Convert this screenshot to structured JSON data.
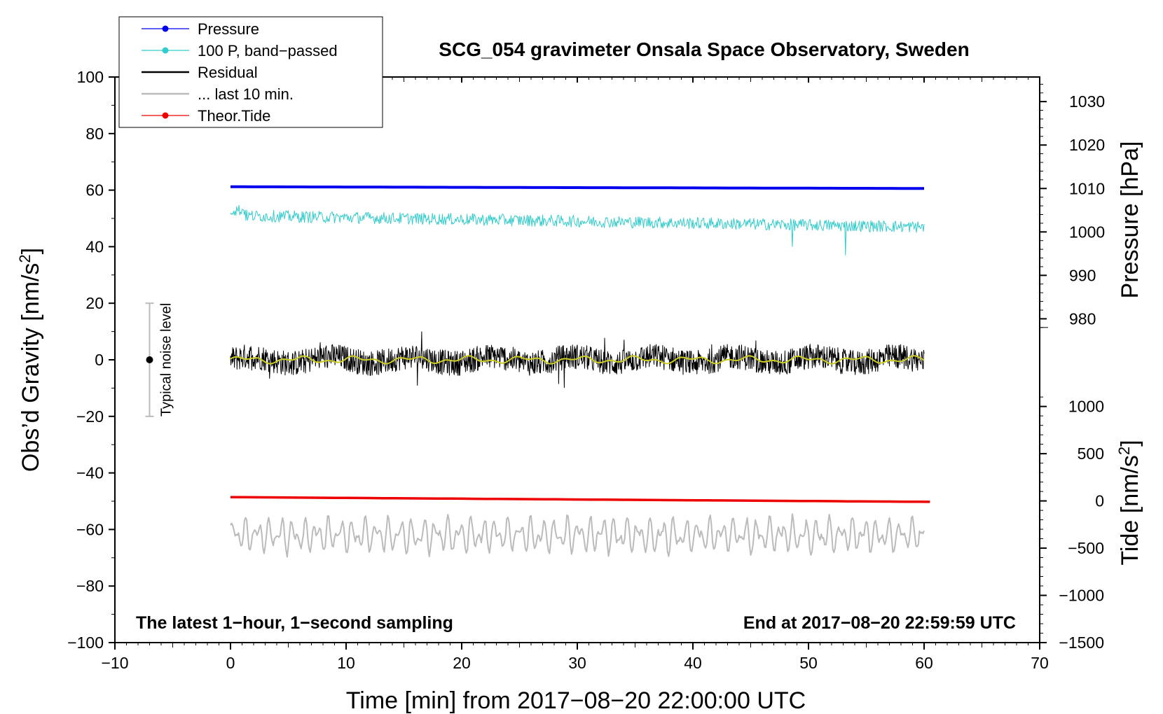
{
  "chart_data": {
    "type": "line",
    "title": "SCG_054 gravimeter Onsala Space Observatory, Sweden",
    "xlabel": "Time [min] from 2017−08−20 22:00:00 UTC",
    "ylabel": "Obs’d Gravity [nm/s",
    "ylabel_sup": "2",
    "ylabel_end": "]",
    "y2label": "Pressure [hPa]",
    "y3label": "Tide [nm/s",
    "y3label_sup": "2",
    "y3label_end": "]",
    "xlim": [
      -10,
      70
    ],
    "ylim": [
      -100,
      100
    ],
    "x_ticks": [
      -10,
      0,
      10,
      20,
      30,
      40,
      50,
      60,
      70
    ],
    "x_tick_labels": [
      "−10",
      "0",
      "10",
      "20",
      "30",
      "40",
      "50",
      "60",
      "70"
    ],
    "y_ticks": [
      -100,
      -80,
      -60,
      -40,
      -20,
      0,
      20,
      40,
      60,
      80,
      100
    ],
    "y_tick_labels": [
      "−100",
      "−80",
      "−60",
      "−40",
      "−20",
      "0",
      "20",
      "40",
      "60",
      "80",
      "100"
    ],
    "pressure_axis": {
      "ticks": [
        980,
        990,
        1000,
        1010,
        1020,
        1030
      ],
      "labels": [
        "980",
        "990",
        "1000",
        "1010",
        "1020",
        "1030"
      ],
      "gravity_equiv": {
        "1030": 91.3,
        "980": 14.5
      }
    },
    "tide_axis": {
      "ticks": [
        -1500,
        -1000,
        -500,
        0,
        500,
        1000
      ],
      "labels": [
        "−1500",
        "−1000",
        "−500",
        "0",
        "500",
        "1000"
      ],
      "gravity_equiv": {
        "-1500": -100,
        "1000": -16.5
      }
    },
    "annotations": {
      "left_note": "The latest 1−hour, 1−second sampling",
      "right_note": "End at 2017−08−20 22:59:59 UTC",
      "noise_label": "Typical noise level",
      "noise_bar": {
        "x": -7,
        "center": 0,
        "half_range": 20
      }
    },
    "legend": {
      "position": "top-left",
      "entries": [
        {
          "label": "Pressure",
          "color": "#0000ee",
          "marker": true
        },
        {
          "label": "100 P, band−passed",
          "color": "#33cccc",
          "marker": true
        },
        {
          "label": "Residual",
          "color": "#000000",
          "marker": false
        },
        {
          "label": "... last 10 min.",
          "color": "#bbbbbb",
          "marker": false
        },
        {
          "label": "Theor.Tide",
          "color": "#ee0000",
          "marker": true
        }
      ]
    },
    "series": [
      {
        "name": "Pressure",
        "axis": "pressure",
        "color": "#0000ee",
        "x_range": [
          0,
          60
        ],
        "start": 1010.4,
        "end": 1010.0
      },
      {
        "name": "100 P, band-passed",
        "axis": "gravity",
        "color": "#33cccc",
        "x_range": [
          0,
          60
        ],
        "start": 51,
        "end": 47,
        "noise_amplitude": 3,
        "spikes": [
          {
            "x": 48.6,
            "value": 40
          },
          {
            "x": 53.2,
            "value": 37
          }
        ]
      },
      {
        "name": "Residual",
        "axis": "gravity",
        "color": "#000000",
        "x_range": [
          0,
          60
        ],
        "mean": 0,
        "noise_amplitude": 5
      },
      {
        "name": "Residual smoothed",
        "axis": "gravity",
        "color": "#cccc22",
        "x_range": [
          0,
          60
        ],
        "mean": 0,
        "noise_amplitude": 1.2
      },
      {
        "name": "... last 10 min.",
        "axis": "gravity",
        "color": "#bbbbbb",
        "x_range": [
          0,
          60
        ],
        "mean": -62,
        "noise_amplitude": 6
      },
      {
        "name": "Theor.Tide",
        "axis": "tide",
        "color": "#ee0000",
        "x_range": [
          0,
          60.5
        ],
        "start": 40,
        "end": -10
      }
    ]
  }
}
